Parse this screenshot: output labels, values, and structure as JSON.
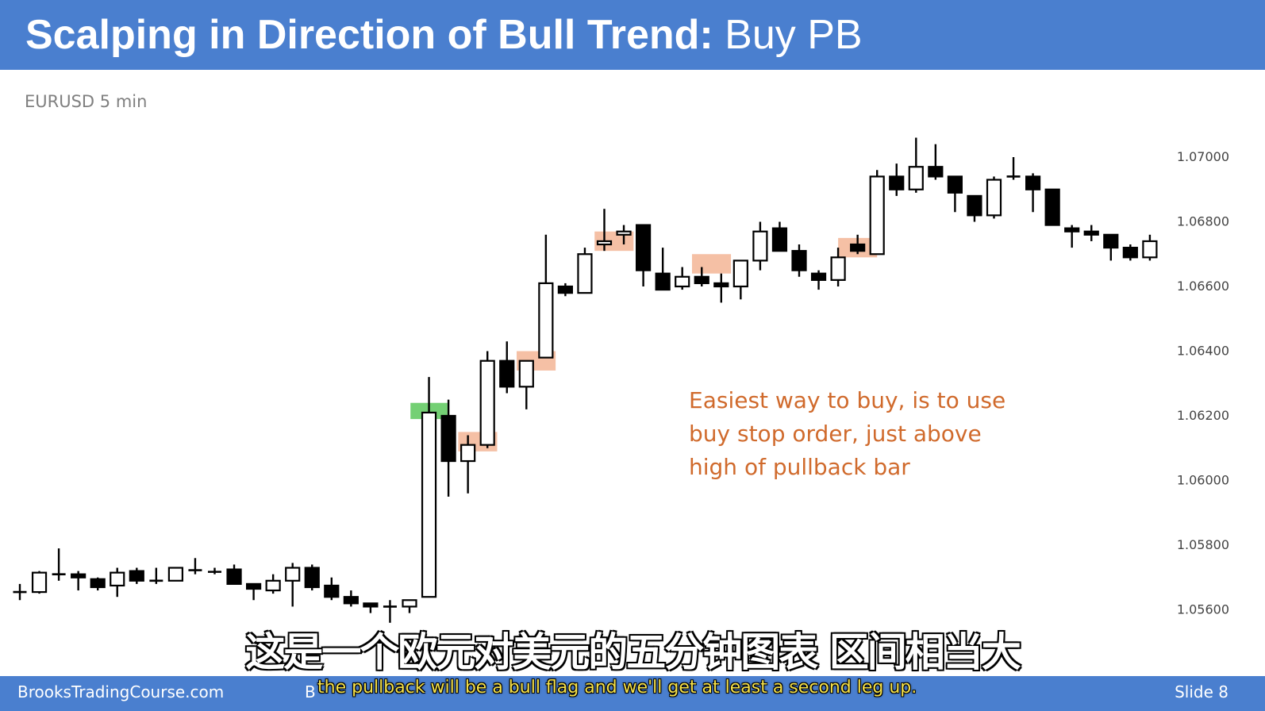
{
  "header": {
    "title_bold": "Scalping in Direction of Bull Trend:",
    "title_rest": " Buy PB"
  },
  "subtitle": "EURUSD 5 min",
  "annotation": {
    "lines": [
      "Easiest way to buy, is to use",
      "buy stop order, just above",
      "high of pullback bar"
    ]
  },
  "footer": {
    "site": "BrooksTradingCourse.com",
    "b": "B",
    "slide": "Slide  8"
  },
  "subtitles": {
    "cn": "这是一个欧元对美元的五分钟图表 区间相当大",
    "en": "the pullback will be a bull flag  and we'll get at least a second leg up."
  },
  "colors": {
    "header_bg": "#4a7fcf",
    "bull_body": "#ffffff",
    "bear_body": "#000000",
    "entry_highlight": "#5cc85c",
    "pullback_highlight": "#f2b08f",
    "annotation_text": "#d06a2c"
  },
  "chart_data": {
    "type": "candlestick",
    "symbol": "EURUSD",
    "timeframe": "5 min",
    "ylim": [
      1.0552,
      1.0712
    ],
    "y_ticks": [
      "1.07000",
      "1.06800",
      "1.06600",
      "1.06400",
      "1.06200",
      "1.06000",
      "1.05800",
      "1.05600"
    ],
    "y_tick_values": [
      1.07,
      1.068,
      1.066,
      1.064,
      1.062,
      1.06,
      1.058,
      1.056
    ],
    "grid": false,
    "candles": [
      {
        "o": 1.05655,
        "h": 1.0568,
        "l": 1.0563,
        "c": 1.05655
      },
      {
        "o": 1.05655,
        "h": 1.0572,
        "l": 1.0565,
        "c": 1.05715
      },
      {
        "o": 1.0571,
        "h": 1.0579,
        "l": 1.0569,
        "c": 1.0571
      },
      {
        "o": 1.0571,
        "h": 1.0572,
        "l": 1.0566,
        "c": 1.057
      },
      {
        "o": 1.05695,
        "h": 1.057,
        "l": 1.0566,
        "c": 1.0567
      },
      {
        "o": 1.05675,
        "h": 1.0573,
        "l": 1.0564,
        "c": 1.05715
      },
      {
        "o": 1.0572,
        "h": 1.0573,
        "l": 1.0568,
        "c": 1.0569
      },
      {
        "o": 1.0569,
        "h": 1.0573,
        "l": 1.0568,
        "c": 1.0569
      },
      {
        "o": 1.0569,
        "h": 1.0573,
        "l": 1.0569,
        "c": 1.0573
      },
      {
        "o": 1.05725,
        "h": 1.0576,
        "l": 1.0571,
        "c": 1.0572
      },
      {
        "o": 1.0572,
        "h": 1.0573,
        "l": 1.0571,
        "c": 1.05715
      },
      {
        "o": 1.05725,
        "h": 1.0574,
        "l": 1.0568,
        "c": 1.0568
      },
      {
        "o": 1.0568,
        "h": 1.0568,
        "l": 1.0563,
        "c": 1.05665
      },
      {
        "o": 1.0566,
        "h": 1.0571,
        "l": 1.0565,
        "c": 1.0569
      },
      {
        "o": 1.0569,
        "h": 1.05745,
        "l": 1.0561,
        "c": 1.0573
      },
      {
        "o": 1.0573,
        "h": 1.0574,
        "l": 1.0566,
        "c": 1.0567
      },
      {
        "o": 1.05675,
        "h": 1.057,
        "l": 1.0563,
        "c": 1.0564
      },
      {
        "o": 1.0564,
        "h": 1.0566,
        "l": 1.0561,
        "c": 1.0562
      },
      {
        "o": 1.0562,
        "h": 1.0562,
        "l": 1.0559,
        "c": 1.0561
      },
      {
        "o": 1.0561,
        "h": 1.0563,
        "l": 1.0556,
        "c": 1.0561
      },
      {
        "o": 1.0561,
        "h": 1.0563,
        "l": 1.0559,
        "c": 1.0563
      },
      {
        "o": 1.0564,
        "h": 1.0632,
        "l": 1.0564,
        "c": 1.0621
      },
      {
        "o": 1.062,
        "h": 1.0625,
        "l": 1.0595,
        "c": 1.0606
      },
      {
        "o": 1.0606,
        "h": 1.0614,
        "l": 1.0596,
        "c": 1.0611
      },
      {
        "o": 1.0611,
        "h": 1.064,
        "l": 1.061,
        "c": 1.0637
      },
      {
        "o": 1.0637,
        "h": 1.0643,
        "l": 1.0627,
        "c": 1.0629
      },
      {
        "o": 1.0629,
        "h": 1.0637,
        "l": 1.0622,
        "c": 1.0637
      },
      {
        "o": 1.0638,
        "h": 1.0676,
        "l": 1.0638,
        "c": 1.0661
      },
      {
        "o": 1.066,
        "h": 1.0661,
        "l": 1.0657,
        "c": 1.0658
      },
      {
        "o": 1.0658,
        "h": 1.0672,
        "l": 1.0658,
        "c": 1.067
      },
      {
        "o": 1.0673,
        "h": 1.0684,
        "l": 1.0671,
        "c": 1.0674
      },
      {
        "o": 1.0676,
        "h": 1.0679,
        "l": 1.0673,
        "c": 1.0677
      },
      {
        "o": 1.0679,
        "h": 1.0679,
        "l": 1.066,
        "c": 1.0665
      },
      {
        "o": 1.0664,
        "h": 1.0672,
        "l": 1.0659,
        "c": 1.0659
      },
      {
        "o": 1.066,
        "h": 1.0666,
        "l": 1.0659,
        "c": 1.0663
      },
      {
        "o": 1.0663,
        "h": 1.0666,
        "l": 1.066,
        "c": 1.0661
      },
      {
        "o": 1.0661,
        "h": 1.0664,
        "l": 1.0655,
        "c": 1.066
      },
      {
        "o": 1.066,
        "h": 1.0668,
        "l": 1.0656,
        "c": 1.0668
      },
      {
        "o": 1.0668,
        "h": 1.068,
        "l": 1.0665,
        "c": 1.0677
      },
      {
        "o": 1.0678,
        "h": 1.068,
        "l": 1.0671,
        "c": 1.0671
      },
      {
        "o": 1.0671,
        "h": 1.0673,
        "l": 1.0663,
        "c": 1.0665
      },
      {
        "o": 1.0664,
        "h": 1.0665,
        "l": 1.0659,
        "c": 1.0662
      },
      {
        "o": 1.0662,
        "h": 1.0672,
        "l": 1.066,
        "c": 1.0669
      },
      {
        "o": 1.0673,
        "h": 1.0676,
        "l": 1.067,
        "c": 1.0671
      },
      {
        "o": 1.067,
        "h": 1.0696,
        "l": 1.067,
        "c": 1.0694
      },
      {
        "o": 1.0694,
        "h": 1.0698,
        "l": 1.0688,
        "c": 1.069
      },
      {
        "o": 1.069,
        "h": 1.0706,
        "l": 1.0689,
        "c": 1.0697
      },
      {
        "o": 1.0697,
        "h": 1.0704,
        "l": 1.0693,
        "c": 1.0694
      },
      {
        "o": 1.0694,
        "h": 1.0694,
        "l": 1.0683,
        "c": 1.0689
      },
      {
        "o": 1.0688,
        "h": 1.0688,
        "l": 1.068,
        "c": 1.0682
      },
      {
        "o": 1.0682,
        "h": 1.0694,
        "l": 1.0681,
        "c": 1.0693
      },
      {
        "o": 1.0694,
        "h": 1.07,
        "l": 1.0693,
        "c": 1.0694
      },
      {
        "o": 1.0694,
        "h": 1.0695,
        "l": 1.0683,
        "c": 1.069
      },
      {
        "o": 1.069,
        "h": 1.069,
        "l": 1.0679,
        "c": 1.0679
      },
      {
        "o": 1.0678,
        "h": 1.0679,
        "l": 1.0672,
        "c": 1.0677
      },
      {
        "o": 1.0677,
        "h": 1.0679,
        "l": 1.0674,
        "c": 1.0676
      },
      {
        "o": 1.0676,
        "h": 1.0676,
        "l": 1.0668,
        "c": 1.0672
      },
      {
        "o": 1.0672,
        "h": 1.0673,
        "l": 1.0668,
        "c": 1.0669
      },
      {
        "o": 1.0669,
        "h": 1.0676,
        "l": 1.0668,
        "c": 1.0674
      }
    ],
    "highlights": [
      {
        "kind": "entry",
        "bar": 21,
        "y1": 1.0619,
        "y2": 1.0624
      },
      {
        "kind": "pullback",
        "bar": 23.5,
        "width_bars": 2,
        "y1": 1.0609,
        "y2": 1.0615
      },
      {
        "kind": "pullback",
        "bar": 26.5,
        "width_bars": 2,
        "y1": 1.0634,
        "y2": 1.064
      },
      {
        "kind": "pullback",
        "bar": 30.5,
        "width_bars": 2,
        "y1": 1.0671,
        "y2": 1.0677
      },
      {
        "kind": "pullback",
        "bar": 35.5,
        "width_bars": 2,
        "y1": 1.0664,
        "y2": 1.067
      },
      {
        "kind": "pullback",
        "bar": 43,
        "width_bars": 2,
        "y1": 1.0669,
        "y2": 1.0675
      }
    ]
  }
}
